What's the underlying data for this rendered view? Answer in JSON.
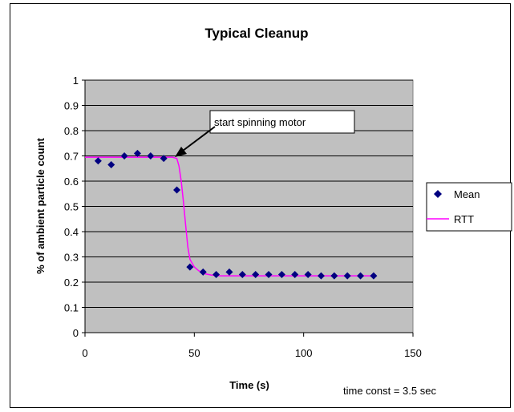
{
  "chart_data": {
    "type": "scatter",
    "title": "Typical Cleanup",
    "xlabel": "Time (s)",
    "ylabel": "% of ambient particle count",
    "xlim": [
      0,
      150
    ],
    "ylim": [
      0,
      1
    ],
    "x_ticks": [
      "0",
      "50",
      "100",
      "150"
    ],
    "y_ticks": [
      "0",
      "0.1",
      "0.2",
      "0.3",
      "0.4",
      "0.5",
      "0.6",
      "0.7",
      "0.8",
      "0.9",
      "1"
    ],
    "grid": true,
    "legend_position": "right",
    "series": [
      {
        "name": "Mean",
        "kind": "scatter",
        "marker": "diamond",
        "color": "#000080",
        "x": [
          6,
          12,
          18,
          24,
          30,
          36,
          42,
          48,
          54,
          60,
          66,
          72,
          78,
          84,
          90,
          96,
          102,
          108,
          114,
          120,
          126,
          132
        ],
        "y": [
          0.68,
          0.665,
          0.7,
          0.71,
          0.7,
          0.69,
          0.565,
          0.26,
          0.24,
          0.23,
          0.24,
          0.23,
          0.23,
          0.23,
          0.23,
          0.23,
          0.23,
          0.225,
          0.225,
          0.225,
          0.225,
          0.225
        ]
      },
      {
        "name": "RTT",
        "kind": "line",
        "color": "#ff00ff",
        "x": [
          0,
          40,
          42,
          43,
          44,
          45,
          46,
          47,
          48,
          50,
          52,
          55,
          58,
          62,
          70,
          80,
          132
        ],
        "y": [
          0.695,
          0.695,
          0.69,
          0.66,
          0.6,
          0.52,
          0.43,
          0.34,
          0.29,
          0.26,
          0.245,
          0.233,
          0.228,
          0.225,
          0.225,
          0.225,
          0.225
        ]
      }
    ],
    "annotations": [
      {
        "text": "start spinning motor",
        "target_x": 42,
        "target_y": 0.695
      },
      {
        "text": "time const = 3.5 sec"
      }
    ]
  }
}
